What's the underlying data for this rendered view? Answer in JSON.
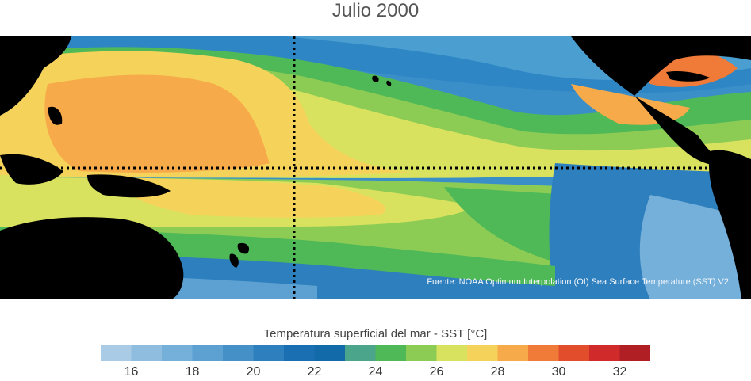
{
  "title": "Julio 2000",
  "source_note": "Fuente: NOAA Optimum Interpolation (OI) Sea Surface Temperature (SST) V2",
  "colorbar": {
    "label": "Temperatura superficial del mar - SST  [°C]",
    "min": 15,
    "max": 33,
    "colors": [
      "#a9cbe5",
      "#8fbde0",
      "#75b0db",
      "#5ca1d2",
      "#4690c8",
      "#2e7fbd",
      "#1a6fb3",
      "#136aa8",
      "#4aa58a",
      "#4fb857",
      "#8ccc55",
      "#d9e25f",
      "#f5d35a",
      "#f7aa4a",
      "#f07a37",
      "#e24e2b",
      "#d12a2a",
      "#b01f24"
    ],
    "ticks": [
      16,
      18,
      20,
      22,
      24,
      26,
      28,
      30,
      32
    ]
  },
  "map": {
    "equator_dashed": true,
    "dateline_dashed": true,
    "land_color": "#000000"
  }
}
